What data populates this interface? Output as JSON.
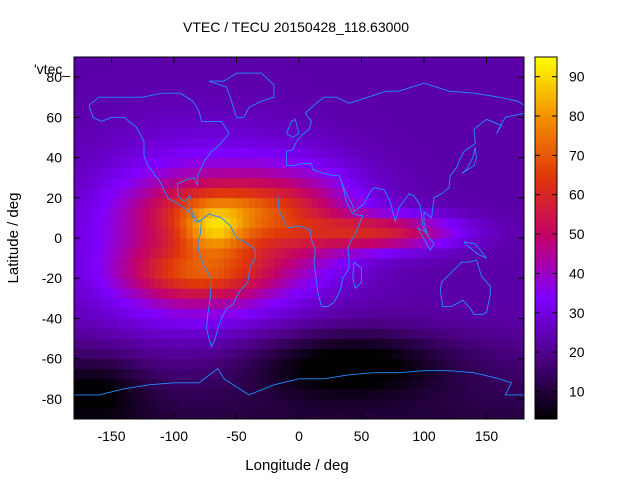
{
  "chart_data": {
    "type": "heatmap",
    "title": "VTEC / TECU 20150428_118.63000",
    "xlabel": "Longitude / deg",
    "ylabel": "Latitude / deg",
    "key_label": "'vtec_",
    "xlim": [
      -180,
      180
    ],
    "ylim": [
      -90,
      90
    ],
    "xticks": [
      -150,
      -100,
      -50,
      0,
      50,
      100,
      150
    ],
    "yticks": [
      -80,
      -60,
      -40,
      -20,
      0,
      20,
      40,
      60,
      80
    ],
    "colorbar": {
      "range": [
        3,
        95
      ],
      "ticks": [
        10,
        20,
        30,
        40,
        50,
        60,
        70,
        80,
        90
      ],
      "palette": [
        "#000000",
        "#4b0082",
        "#7f00ff",
        "#c2006b",
        "#e0360a",
        "#f29000",
        "#ffff00"
      ]
    },
    "grid": false,
    "legend": "top-right",
    "coastline_color": "#1e90ff",
    "tec_features": [
      {
        "region": "background",
        "value": 23
      },
      {
        "region": "equatorial-anomaly-north",
        "lon": -60,
        "lat": 15,
        "value": 70
      },
      {
        "region": "equatorial-anomaly-south",
        "lon": -80,
        "lat": -18,
        "value": 72
      },
      {
        "region": "peak",
        "lon": -68,
        "lat": 4,
        "value": 82
      },
      {
        "region": "africa-extension",
        "lon": 70,
        "lat": 3,
        "value": 55
      },
      {
        "region": "south-polar-low",
        "lon": 40,
        "lat": -62,
        "value": 5
      }
    ]
  }
}
